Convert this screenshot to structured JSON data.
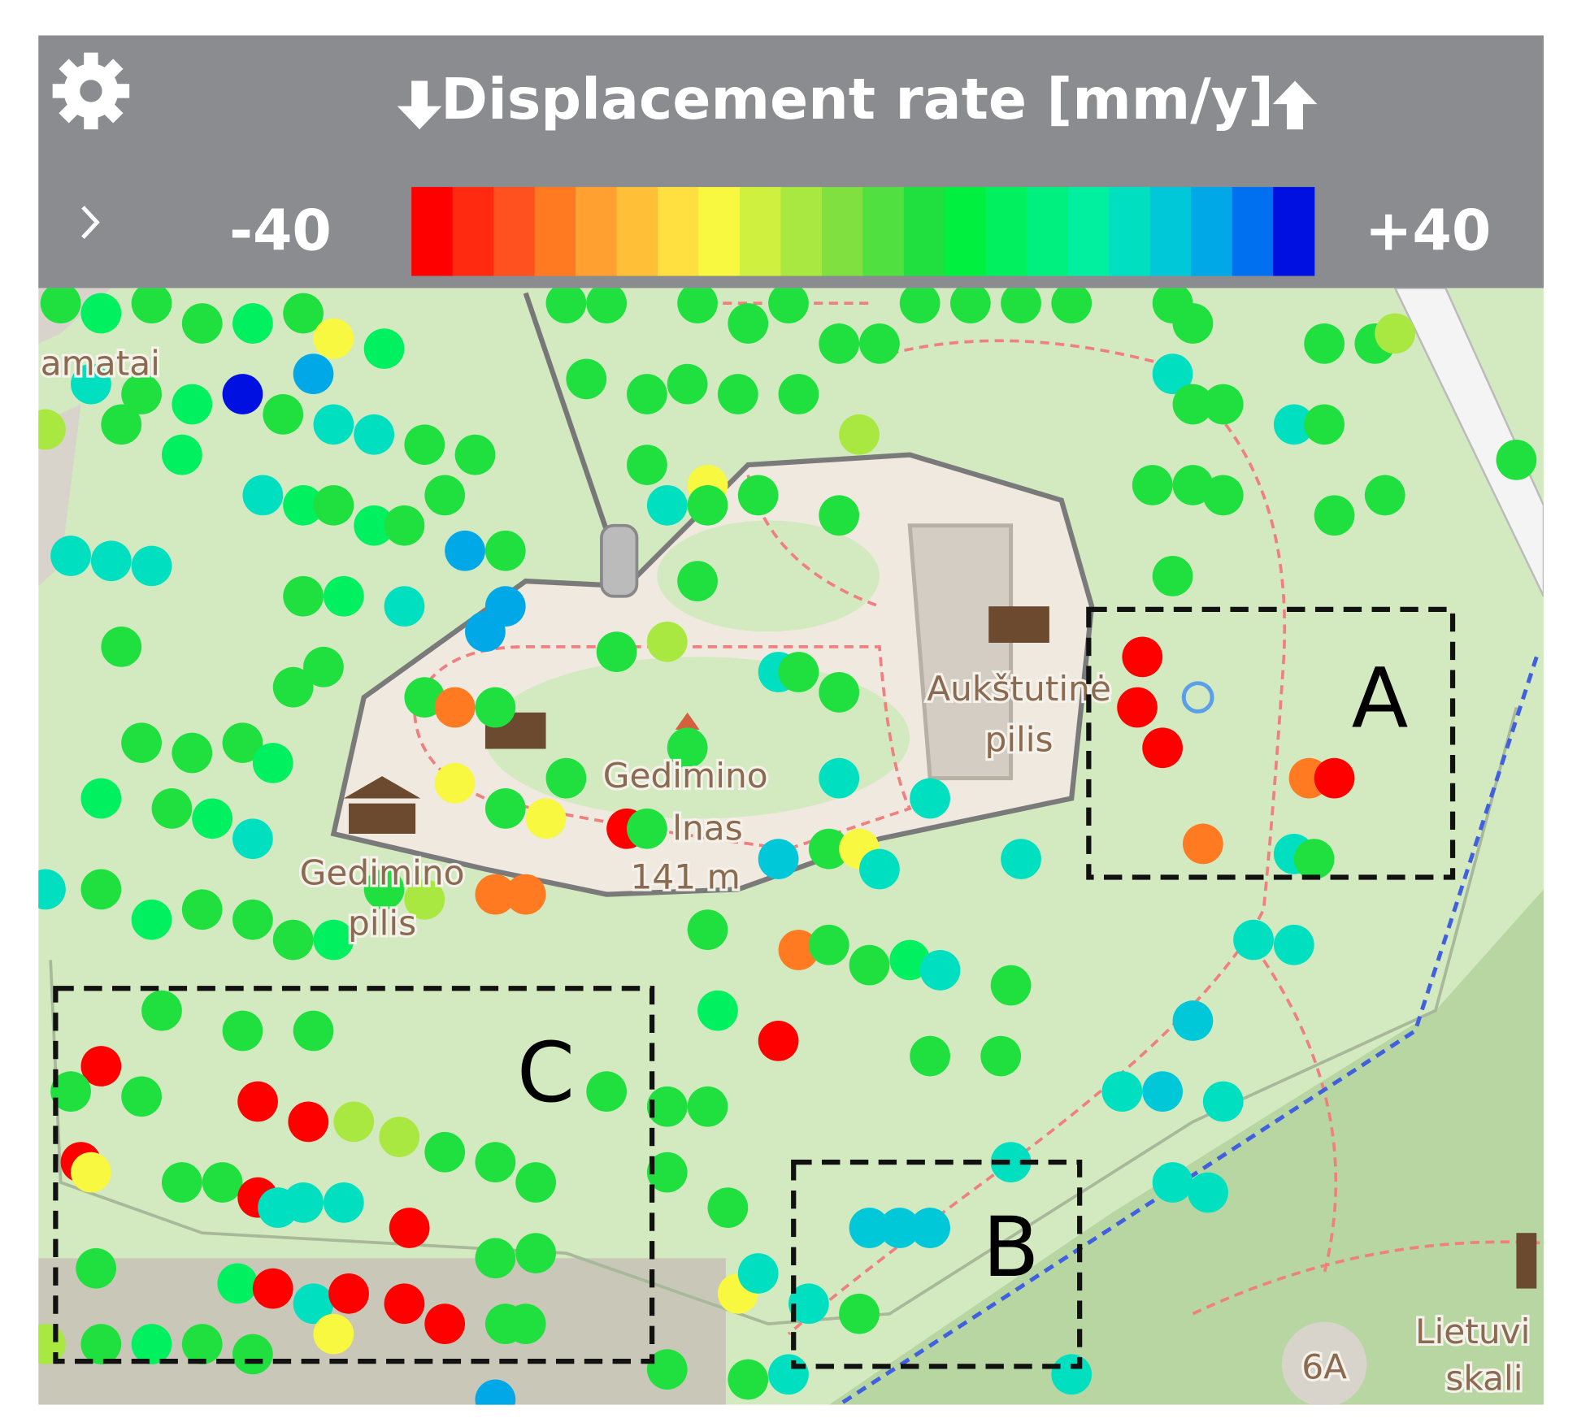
{
  "header": {
    "title": "Displacement rate [mm/y]"
  },
  "colorbar": {
    "min": -40,
    "max": {
      "value": 40,
      "label": "+40"
    },
    "colors": [
      "#ff0000",
      "#ff2a10",
      "#ff5020",
      "#ff7a20",
      "#ffa030",
      "#ffc038",
      "#ffe040",
      "#f8f840",
      "#d0f040",
      "#a8e840",
      "#80e040",
      "#50e040",
      "#20e040",
      "#00f040",
      "#00f060",
      "#00f080",
      "#00f0a0",
      "#00e0c0",
      "#00c8d8",
      "#00a8e8",
      "#0070f0",
      "#0010e0"
    ]
  },
  "map_labels": [
    "Aukštutinė",
    "pilis",
    "Gedimino",
    "lnas",
    "141 m",
    "Gedimino",
    "pilis",
    "Lietuvi",
    "skali",
    "6A",
    "amatai"
  ],
  "areas": [
    "A",
    "B",
    "C"
  ]
}
